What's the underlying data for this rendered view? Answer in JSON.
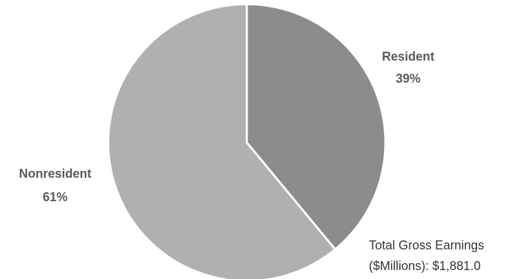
{
  "chart_data": {
    "type": "pie",
    "slices": [
      {
        "label": "Resident",
        "value": 39,
        "value_label": "39%",
        "color": "#8c8c8c"
      },
      {
        "label": "Nonresident",
        "value": 61,
        "value_label": "61%",
        "color": "#b0b0b0"
      }
    ],
    "start": "12 o'clock",
    "direction": "clockwise",
    "separator_color": "#ffffff",
    "legend": "none",
    "annotation": {
      "line1": "Total Gross Earnings",
      "line2": "($Millions): $1,881.0"
    }
  }
}
